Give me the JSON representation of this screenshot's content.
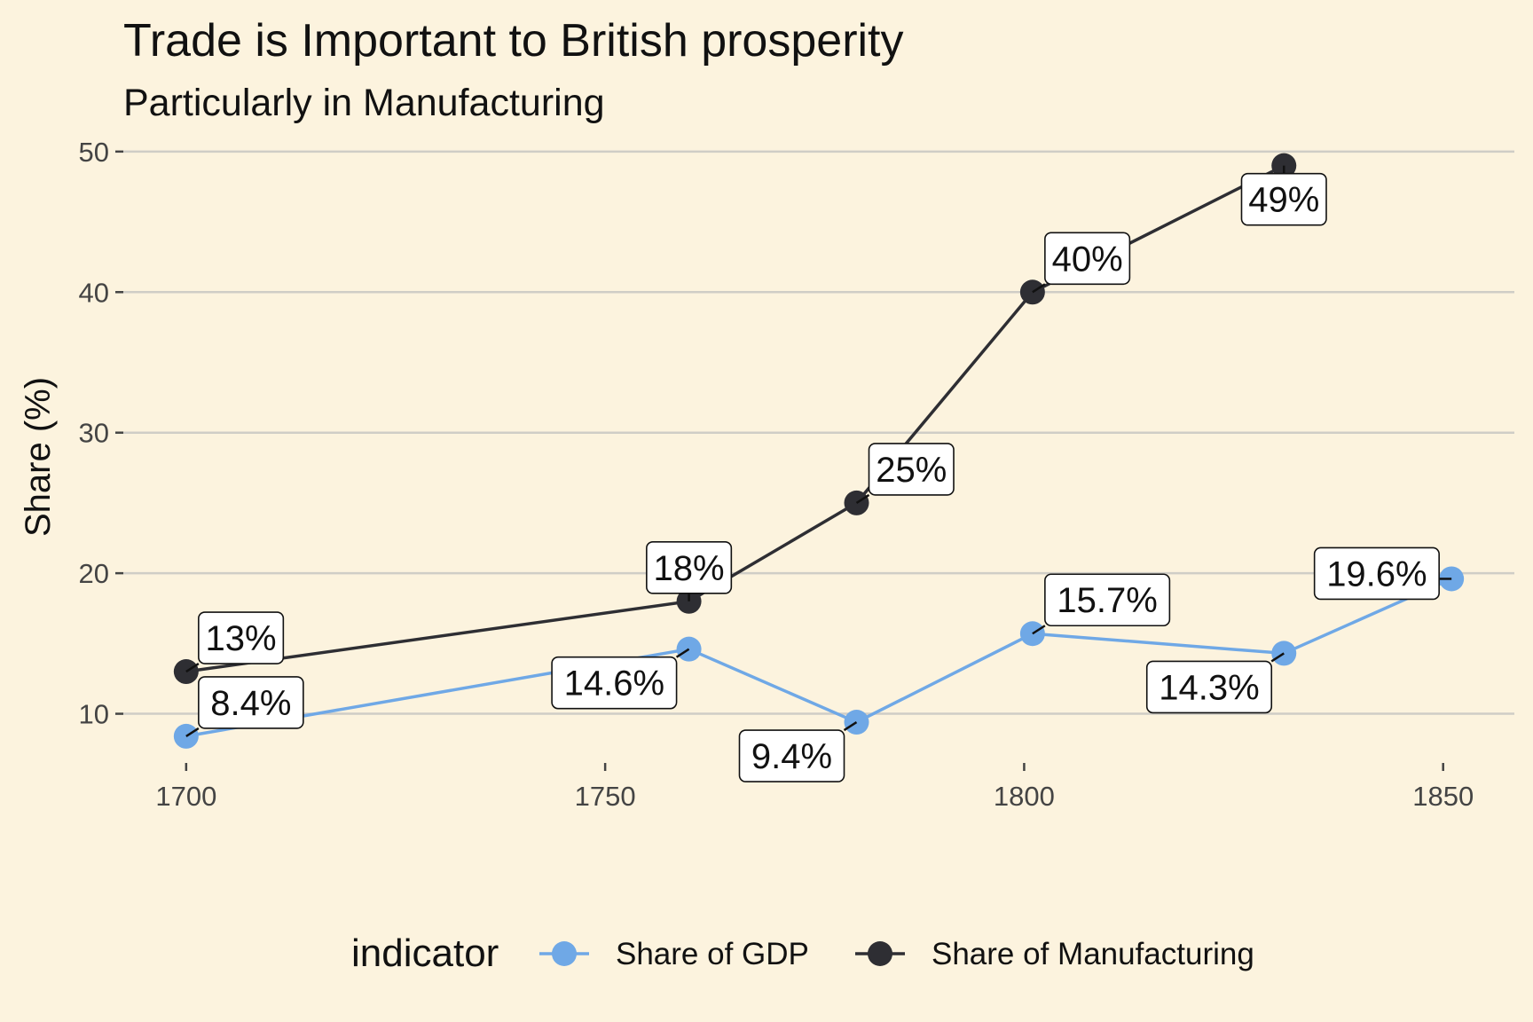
{
  "chart_data": {
    "type": "line",
    "title": "Trade is Important to British prosperity",
    "subtitle": "Particularly in Manufacturing",
    "xlabel": "",
    "ylabel": "Share (%)",
    "xlim": [
      1692.5,
      1858.5
    ],
    "ylim": [
      6.5,
      51
    ],
    "x_ticks": [
      1700,
      1750,
      1800,
      1850
    ],
    "y_ticks": [
      10,
      20,
      30,
      40,
      50
    ],
    "grid": "horizontal major",
    "legend_title": "indicator",
    "legend_position": "bottom",
    "series": [
      {
        "name": "Share of GDP",
        "color": "#6fa8e6",
        "points": [
          {
            "x": 1700,
            "y": 8.4,
            "label": "8.4%"
          },
          {
            "x": 1760,
            "y": 14.6,
            "label": "14.6%"
          },
          {
            "x": 1780,
            "y": 9.4,
            "label": "9.4%"
          },
          {
            "x": 1801,
            "y": 15.7,
            "label": "15.7%"
          },
          {
            "x": 1831,
            "y": 14.3,
            "label": "14.3%"
          },
          {
            "x": 1851,
            "y": 19.6,
            "label": "19.6%"
          }
        ]
      },
      {
        "name": "Share of Manufacturing",
        "color": "#2e2e33",
        "points": [
          {
            "x": 1700,
            "y": 13,
            "label": "13%"
          },
          {
            "x": 1760,
            "y": 18,
            "label": "18%"
          },
          {
            "x": 1780,
            "y": 25,
            "label": "25%"
          },
          {
            "x": 1801,
            "y": 40,
            "label": "40%"
          },
          {
            "x": 1831,
            "y": 49,
            "label": "49%"
          }
        ]
      }
    ]
  }
}
